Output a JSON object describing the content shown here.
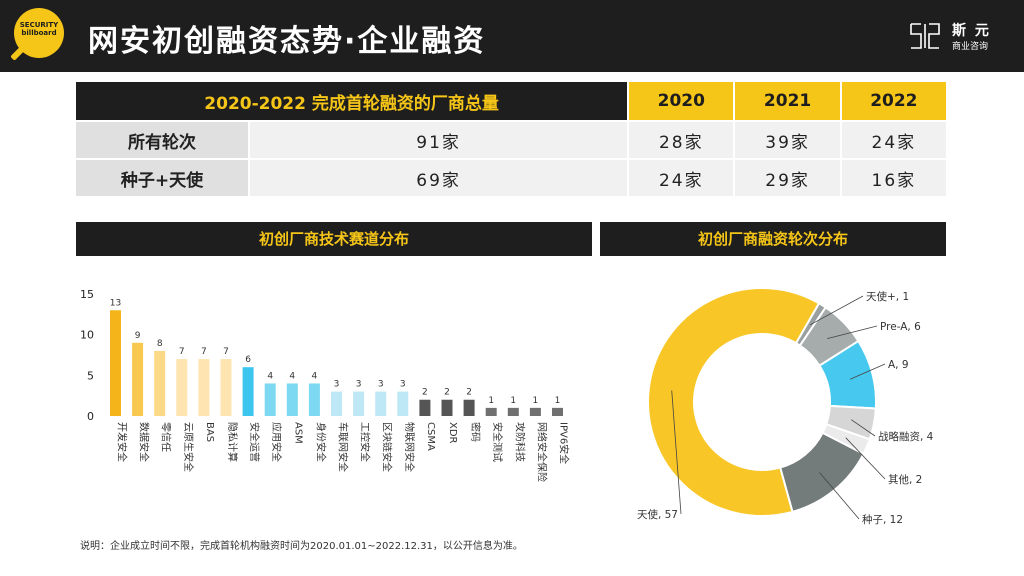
{
  "header": {
    "logo_text": "SECURITY billboard",
    "title": "网安初创融资态势·企业融资",
    "brand_name": "斯 元",
    "brand_sub": "商业咨询"
  },
  "table": {
    "header_label": "2020-2022 完成首轮融资的厂商总量",
    "years": [
      "2020",
      "2021",
      "2022"
    ],
    "rows": [
      {
        "label": "所有轮次",
        "total": "91家",
        "values": [
          "28家",
          "39家",
          "24家"
        ]
      },
      {
        "label": "种子+天使",
        "total": "69家",
        "values": [
          "24家",
          "29家",
          "16家"
        ]
      }
    ]
  },
  "sections": {
    "tech_title": "初创厂商技术赛道分布",
    "round_title": "初创厂商融资轮次分布"
  },
  "footnote": "说明：企业成立时间不限，完成首轮机构融资时间为2020.01.01~2022.12.31，以公开信息为准。",
  "chart_data": [
    {
      "type": "bar",
      "title": "初创厂商技术赛道分布",
      "ylim": [
        0,
        15
      ],
      "yticks": [
        0,
        5,
        10,
        15
      ],
      "categories": [
        "开发安全",
        "数据安全",
        "零信任",
        "云原生安全",
        "BAS",
        "隐私计算",
        "安全运营",
        "应用安全",
        "ASM",
        "身份安全",
        "车联网安全",
        "工控安全",
        "区块链安全",
        "物联网安全",
        "CSMA",
        "XDR",
        "密码",
        "安全测试",
        "攻防科技",
        "网络安全保险",
        "IPV6安全"
      ],
      "values": [
        13,
        9,
        8,
        7,
        7,
        7,
        6,
        4,
        4,
        4,
        3,
        3,
        3,
        3,
        2,
        2,
        2,
        1,
        1,
        1,
        1
      ],
      "colors": [
        "#f5b41a",
        "#f8c850",
        "#fbd987",
        "#fde4b0",
        "#fde4b0",
        "#fde4b0",
        "#3cc6ee",
        "#7dd8f2",
        "#7dd8f2",
        "#7dd8f2",
        "#bfe8f6",
        "#bfe8f6",
        "#bfe8f6",
        "#bfe8f6",
        "#555555",
        "#555555",
        "#555555",
        "#707070",
        "#707070",
        "#707070",
        "#707070"
      ]
    },
    {
      "type": "pie",
      "title": "初创厂商融资轮次分布",
      "slices": [
        {
          "label": "天使+",
          "value": 1,
          "display": "天使+, 1",
          "color": "#9aa0a0"
        },
        {
          "label": "Pre-A",
          "value": 6,
          "display": "Pre-A, 6",
          "color": "#a6abab"
        },
        {
          "label": "A",
          "value": 9,
          "display": "A, 9",
          "color": "#47c8ee"
        },
        {
          "label": "战略融资",
          "value": 4,
          "display": "战略融资, 4",
          "color": "#d6d6d6"
        },
        {
          "label": "其他",
          "value": 2,
          "display": "其他, 2",
          "color": "#ebebeb"
        },
        {
          "label": "种子",
          "value": 12,
          "display": "种子, 12",
          "color": "#737b7b"
        },
        {
          "label": "天使",
          "value": 57,
          "display": "天使, 57",
          "color": "#f8c626"
        }
      ]
    }
  ]
}
